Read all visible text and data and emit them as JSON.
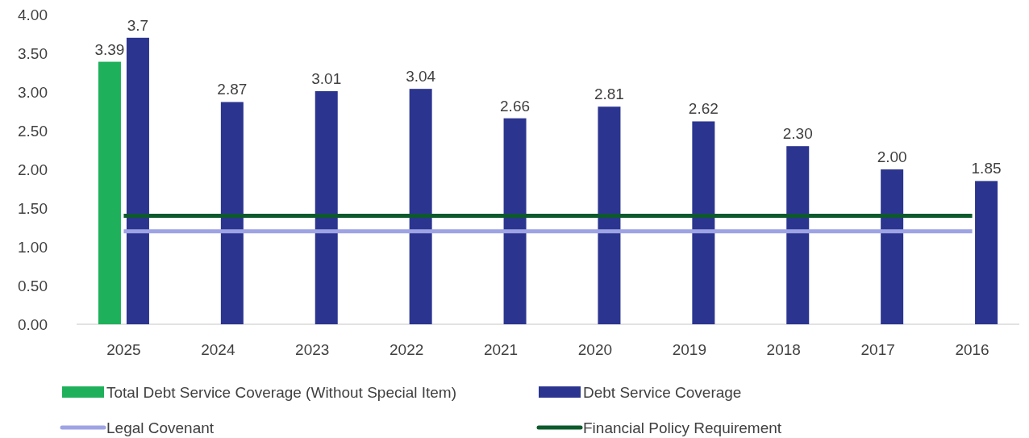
{
  "chart_data": {
    "type": "bar",
    "categories": [
      "2025",
      "2024",
      "2023",
      "2022",
      "2021",
      "2020",
      "2019",
      "2018",
      "2017",
      "2016"
    ],
    "series": [
      {
        "name": "Total Debt Service Coverage (Without Special Item)",
        "color": "#1eb05a",
        "values": [
          3.39,
          null,
          null,
          null,
          null,
          null,
          null,
          null,
          null,
          null
        ],
        "value_labels": [
          "3.39",
          null,
          null,
          null,
          null,
          null,
          null,
          null,
          null,
          null
        ]
      },
      {
        "name": "Debt Service Coverage",
        "color": "#2b3590",
        "values": [
          3.7,
          2.87,
          3.01,
          3.04,
          2.66,
          2.81,
          2.62,
          2.3,
          2.0,
          1.85
        ],
        "value_labels": [
          "3.7",
          "2.87",
          "3.01",
          "3.04",
          "2.66",
          "2.81",
          "2.62",
          "2.30",
          "2.00",
          "1.85"
        ]
      },
      {
        "name": "Legal Covenant",
        "type": "line",
        "color": "#9ea3e3",
        "values": [
          1.2,
          1.2,
          1.2,
          1.2,
          1.2,
          1.2,
          1.2,
          1.2,
          1.2,
          1.2
        ]
      },
      {
        "name": "Financial Policy Requirement",
        "type": "line",
        "color": "#0d5a2c",
        "values": [
          1.4,
          1.4,
          1.4,
          1.4,
          1.4,
          1.4,
          1.4,
          1.4,
          1.4,
          1.4
        ]
      }
    ],
    "ylim": [
      0,
      4
    ],
    "yticks": [
      {
        "value": 0,
        "label": "0.00"
      },
      {
        "value": 0.5,
        "label": "0.50"
      },
      {
        "value": 1,
        "label": "1.00"
      },
      {
        "value": 1.5,
        "label": "1.50"
      },
      {
        "value": 2,
        "label": "2.00"
      },
      {
        "value": 2.5,
        "label": "2.50"
      },
      {
        "value": 3,
        "label": "3.00"
      },
      {
        "value": 3.5,
        "label": "3.50"
      },
      {
        "value": 4,
        "label": "4.00"
      }
    ],
    "grid": false,
    "legend": "bottom"
  }
}
